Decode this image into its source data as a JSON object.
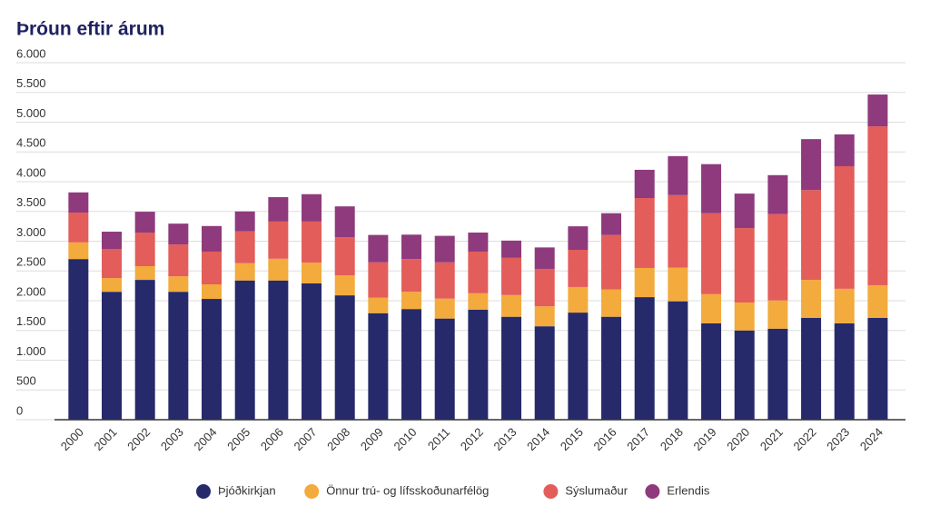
{
  "chart_data": {
    "type": "stacked_bar",
    "title": "Þróun eftir árum",
    "categories": [
      "2000",
      "2001",
      "2002",
      "2003",
      "2004",
      "2005",
      "2006",
      "2007",
      "2008",
      "2009",
      "2010",
      "2011",
      "2012",
      "2013",
      "2014",
      "2015",
      "2016",
      "2017",
      "2018",
      "2019",
      "2020",
      "2021",
      "2022",
      "2023",
      "2024"
    ],
    "series": [
      {
        "name": "Þjóðkirkjan",
        "color": "#262a6b",
        "values": [
          2700,
          2150,
          2350,
          2150,
          2030,
          2340,
          2340,
          2290,
          2090,
          1790,
          1860,
          1700,
          1850,
          1730,
          1570,
          1800,
          1730,
          2060,
          1990,
          1620,
          1500,
          1530,
          1710,
          1620,
          1710
        ]
      },
      {
        "name": "Önnur trú- og lífsskoðunarfélög",
        "color": "#f2ab3c",
        "values": [
          280,
          230,
          230,
          260,
          245,
          290,
          365,
          350,
          335,
          260,
          290,
          335,
          275,
          365,
          335,
          430,
          460,
          490,
          565,
          490,
          470,
          475,
          640,
          580,
          550
        ]
      },
      {
        "name": "Sýslumaður",
        "color": "#e35d5a",
        "values": [
          500,
          490,
          565,
          535,
          550,
          535,
          625,
          690,
          640,
          595,
          550,
          610,
          700,
          625,
          625,
          625,
          915,
          1175,
          1220,
          1360,
          1250,
          1450,
          1510,
          2060,
          2670
        ]
      },
      {
        "name": "Erlendis",
        "color": "#8e3a7d",
        "values": [
          340,
          290,
          350,
          350,
          430,
          335,
          410,
          460,
          520,
          460,
          410,
          445,
          320,
          290,
          365,
          395,
          365,
          475,
          655,
          825,
          580,
          655,
          855,
          535,
          535
        ]
      }
    ],
    "ylim": [
      0,
      6000
    ],
    "yticks": [
      0,
      500,
      {
        "value": 1000,
        "label": "1.000"
      },
      {
        "value": 1500,
        "label": "1.500"
      },
      {
        "value": 2000,
        "label": "2.000"
      },
      {
        "value": 2500,
        "label": "2.500"
      },
      {
        "value": 3000,
        "label": "3.000"
      },
      {
        "value": 3500,
        "label": "3.500"
      },
      {
        "value": 4000,
        "label": "4.000"
      },
      {
        "value": 4500,
        "label": "4.500"
      },
      {
        "value": 5000,
        "label": "5.000"
      },
      {
        "value": 5500,
        "label": "5.500"
      },
      {
        "value": 6000,
        "label": "6.000"
      }
    ],
    "grid": true,
    "legend": "bottom"
  }
}
